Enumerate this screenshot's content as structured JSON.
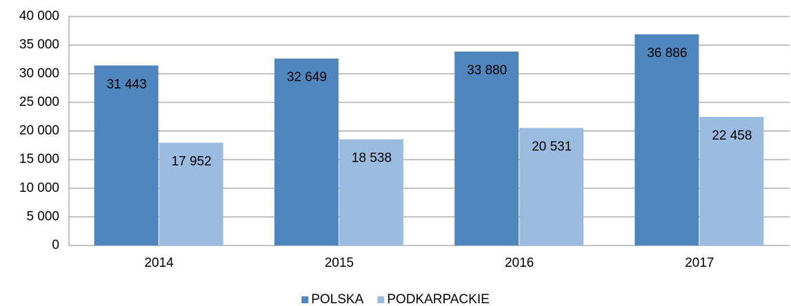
{
  "chart_data": {
    "type": "bar",
    "categories": [
      "2014",
      "2015",
      "2016",
      "2017"
    ],
    "series": [
      {
        "name": "POLSKA",
        "color": "#4f86bd",
        "values": [
          31443,
          32649,
          33880,
          36886
        ],
        "value_labels": [
          "31 443",
          "32 649",
          "33 880",
          "36 886"
        ]
      },
      {
        "name": "PODKARPACKIE",
        "color": "#9bbbe0",
        "values": [
          17952,
          18538,
          20531,
          22458
        ],
        "value_labels": [
          "17 952",
          "18 538",
          "20 531",
          "22 458"
        ]
      }
    ],
    "ylim": [
      0,
      40000
    ],
    "yticks": [
      0,
      {
        "value": 5000,
        "label": "5 000"
      },
      {
        "value": 10000,
        "label": "10 000"
      },
      {
        "value": 15000,
        "label": "15 000"
      },
      {
        "value": 20000,
        "label": "20 000"
      },
      {
        "value": 25000,
        "label": "25 000"
      },
      {
        "value": 30000,
        "label": "30 000"
      },
      {
        "value": 35000,
        "label": "35 000"
      },
      {
        "value": 40000,
        "label": "40 000"
      }
    ],
    "grid": true,
    "legend": "bottom"
  }
}
